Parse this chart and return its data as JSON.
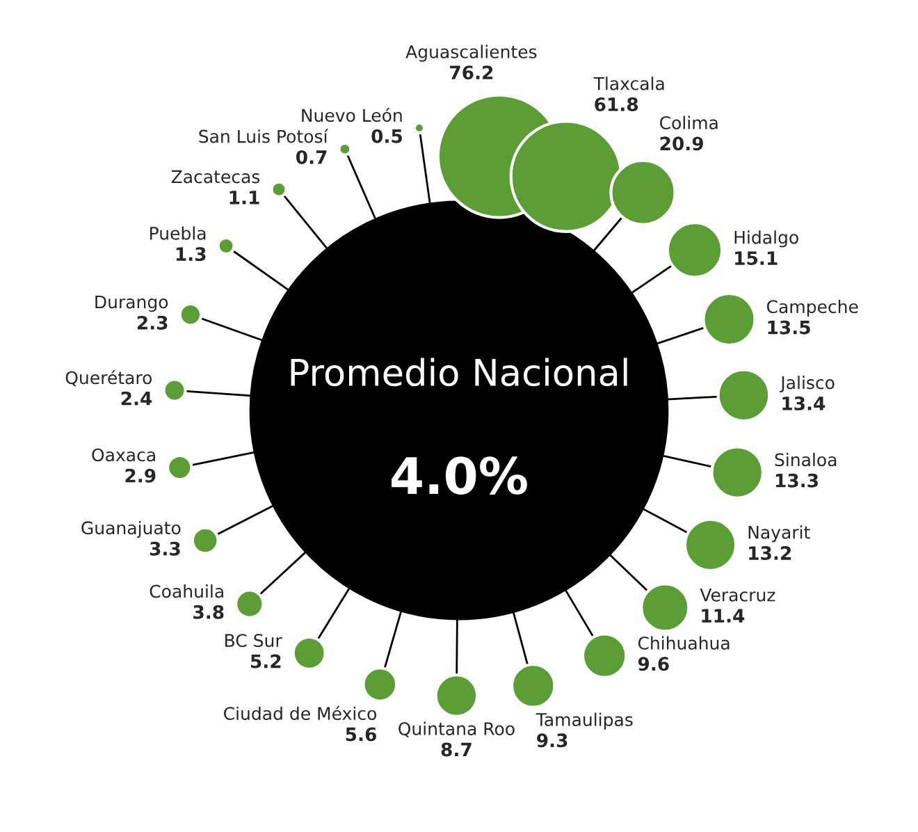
{
  "chart_data": {
    "type": "other",
    "categories": [
      "Aguascalientes",
      "Tlaxcala",
      "Colima",
      "Hidalgo",
      "Campeche",
      "Jalisco",
      "Sinaloa",
      "Nayarit",
      "Veracruz",
      "Chihuahua",
      "Tamaulipas",
      "Quintana Roo",
      "Ciudad de México",
      "BC Sur",
      "Coahuila",
      "Guanajuato",
      "Oaxaca",
      "Querétaro",
      "Durango",
      "Puebla",
      "Zacatecas",
      "San Luis Potosí",
      "Nuevo León"
    ],
    "values": [
      76.2,
      61.8,
      20.9,
      15.1,
      13.5,
      13.4,
      13.3,
      13.2,
      11.4,
      9.6,
      9.3,
      8.7,
      5.6,
      5.2,
      3.8,
      3.3,
      2.9,
      2.4,
      2.3,
      1.3,
      1.1,
      0.7,
      0.5
    ],
    "color": "#5a9e35",
    "data_labels": true,
    "annotations": [
      "Promedio Nacional",
      "4.0%"
    ]
  }
}
